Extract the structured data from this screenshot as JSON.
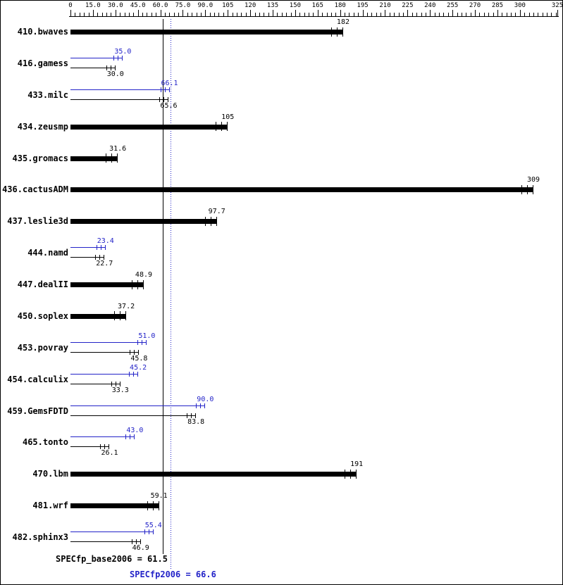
{
  "chart_data": {
    "type": "bar",
    "subtype": "spec-cpu2006-result-chart",
    "orientation": "horizontal",
    "axis": {
      "min": 0,
      "max": 325,
      "minor_tick_interval": 3,
      "major_ticks": [
        {
          "value": 0,
          "label": "0"
        },
        {
          "value": 15,
          "label": "15.0"
        },
        {
          "value": 30,
          "label": "30.0"
        },
        {
          "value": 45,
          "label": "45.0"
        },
        {
          "value": 60,
          "label": "60.0"
        },
        {
          "value": 75,
          "label": "75.0"
        },
        {
          "value": 90,
          "label": "90.0"
        },
        {
          "value": 105,
          "label": "105"
        },
        {
          "value": 120,
          "label": "120"
        },
        {
          "value": 135,
          "label": "135"
        },
        {
          "value": 150,
          "label": "150"
        },
        {
          "value": 165,
          "label": "165"
        },
        {
          "value": 180,
          "label": "180"
        },
        {
          "value": 195,
          "label": "195"
        },
        {
          "value": 210,
          "label": "210"
        },
        {
          "value": 225,
          "label": "225"
        },
        {
          "value": 240,
          "label": "240"
        },
        {
          "value": 255,
          "label": "255"
        },
        {
          "value": 270,
          "label": "270"
        },
        {
          "value": 285,
          "label": "285"
        },
        {
          "value": 300,
          "label": "300"
        },
        {
          "value": 325,
          "label": "325"
        }
      ]
    },
    "series_colors": {
      "base": "#000000",
      "peak": "#2323c8"
    },
    "benchmarks": [
      {
        "name": "410.bwaves",
        "bars": [
          {
            "series": "base",
            "value": 182,
            "label": "182",
            "style": "thick"
          }
        ]
      },
      {
        "name": "416.gamess",
        "bars": [
          {
            "series": "peak",
            "value": 35.0,
            "label": "35.0",
            "style": "thin"
          },
          {
            "series": "base",
            "value": 30.0,
            "label": "30.0",
            "style": "thin"
          }
        ]
      },
      {
        "name": "433.milc",
        "bars": [
          {
            "series": "peak",
            "value": 66.1,
            "label": "66.1",
            "style": "thin"
          },
          {
            "series": "base",
            "value": 65.6,
            "label": "65.6",
            "style": "thin"
          }
        ]
      },
      {
        "name": "434.zeusmp",
        "bars": [
          {
            "series": "base",
            "value": 105,
            "label": "105",
            "style": "thick"
          }
        ]
      },
      {
        "name": "435.gromacs",
        "bars": [
          {
            "series": "base",
            "value": 31.6,
            "label": "31.6",
            "style": "thick"
          }
        ]
      },
      {
        "name": "436.cactusADM",
        "bars": [
          {
            "series": "base",
            "value": 309,
            "label": "309",
            "style": "thick"
          }
        ]
      },
      {
        "name": "437.leslie3d",
        "bars": [
          {
            "series": "base",
            "value": 97.7,
            "label": "97.7",
            "style": "thick"
          }
        ]
      },
      {
        "name": "444.namd",
        "bars": [
          {
            "series": "peak",
            "value": 23.4,
            "label": "23.4",
            "style": "thin"
          },
          {
            "series": "base",
            "value": 22.7,
            "label": "22.7",
            "style": "thin"
          }
        ]
      },
      {
        "name": "447.dealII",
        "bars": [
          {
            "series": "base",
            "value": 48.9,
            "label": "48.9",
            "style": "thick"
          }
        ]
      },
      {
        "name": "450.soplex",
        "bars": [
          {
            "series": "base",
            "value": 37.2,
            "label": "37.2",
            "style": "thick"
          }
        ]
      },
      {
        "name": "453.povray",
        "bars": [
          {
            "series": "peak",
            "value": 51.0,
            "label": "51.0",
            "style": "thin"
          },
          {
            "series": "base",
            "value": 45.8,
            "label": "45.8",
            "style": "thin"
          }
        ]
      },
      {
        "name": "454.calculix",
        "bars": [
          {
            "series": "peak",
            "value": 45.2,
            "label": "45.2",
            "style": "thin"
          },
          {
            "series": "base",
            "value": 33.3,
            "label": "33.3",
            "style": "thin"
          }
        ]
      },
      {
        "name": "459.GemsFDTD",
        "bars": [
          {
            "series": "peak",
            "value": 90.0,
            "label": "90.0",
            "style": "thin"
          },
          {
            "series": "base",
            "value": 83.8,
            "label": "83.8",
            "style": "thin"
          }
        ]
      },
      {
        "name": "465.tonto",
        "bars": [
          {
            "series": "peak",
            "value": 43.0,
            "label": "43.0",
            "style": "thin"
          },
          {
            "series": "base",
            "value": 26.1,
            "label": "26.1",
            "style": "thin"
          }
        ]
      },
      {
        "name": "470.lbm",
        "bars": [
          {
            "series": "base",
            "value": 191,
            "label": "191",
            "style": "thick"
          }
        ]
      },
      {
        "name": "481.wrf",
        "bars": [
          {
            "series": "base",
            "value": 59.1,
            "label": "59.1",
            "style": "thick"
          }
        ]
      },
      {
        "name": "482.sphinx3",
        "bars": [
          {
            "series": "peak",
            "value": 55.4,
            "label": "55.4",
            "style": "thin"
          },
          {
            "series": "base",
            "value": 46.9,
            "label": "46.9",
            "style": "thin"
          }
        ]
      }
    ],
    "reference_lines": [
      {
        "series": "base",
        "value": 61.5,
        "style": "solid"
      },
      {
        "series": "peak",
        "value": 66.6,
        "style": "dotted"
      }
    ],
    "summary": {
      "base_label": "SPECfp_base2006 = 61.5",
      "peak_label": "SPECfp2006 = 66.6"
    }
  }
}
